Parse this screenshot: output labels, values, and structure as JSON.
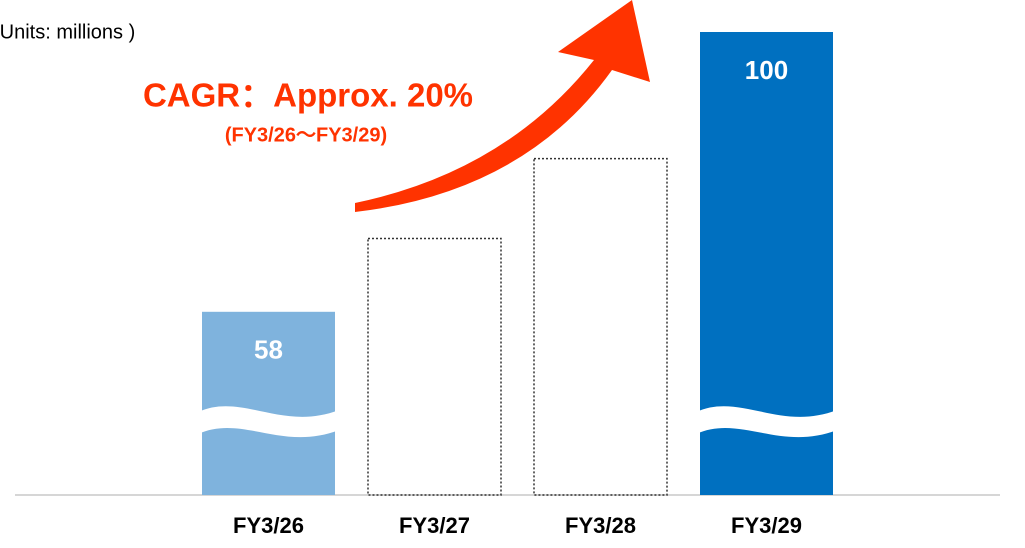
{
  "chart_data": {
    "type": "bar",
    "subtitle": "(Units: millions )",
    "annotations": [
      "CAGR：Approx. 20%",
      "(FY3/26～FY3/29)"
    ],
    "categories": [
      "FY3/26",
      "FY3/27",
      "FY3/28",
      "FY3/29"
    ],
    "values": [
      58,
      69,
      81,
      100
    ],
    "value_labels": [
      "58",
      null,
      null,
      "100"
    ],
    "colors": [
      "#7fb3dd",
      "none",
      "none",
      "#0070c0"
    ],
    "ylim": [
      30.5,
      100
    ]
  }
}
